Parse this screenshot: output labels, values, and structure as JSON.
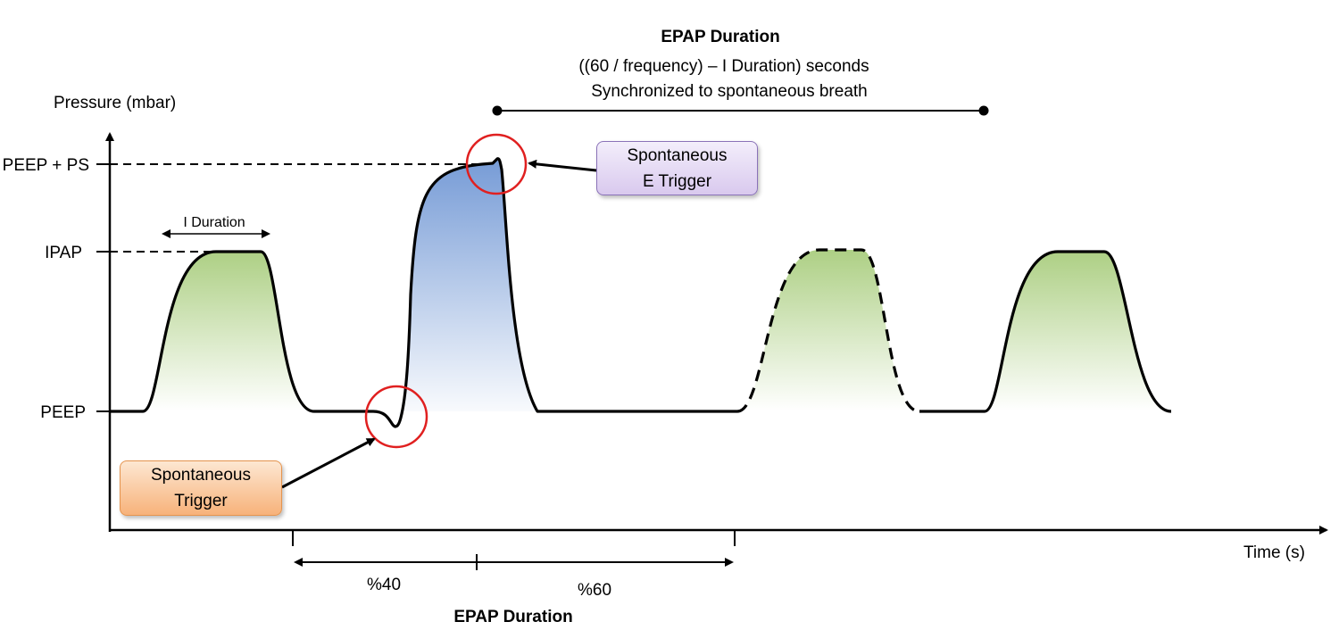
{
  "axes": {
    "y_label": "Pressure (mbar)",
    "x_label": "Time (s)",
    "y_ticks": [
      "PEEP + PS",
      "IPAP",
      "PEEP"
    ]
  },
  "top_annotation": {
    "title": "EPAP Duration",
    "formula": "((60 / frequency) – I Duration) seconds",
    "note": "Synchronized to spontaneous breath"
  },
  "i_duration_label": "I Duration",
  "callouts": {
    "spontaneous_e_trigger": "Spontaneous\nE Trigger",
    "spontaneous_trigger": "Spontaneous\nTrigger"
  },
  "bottom_annotation": {
    "split_first": "%40",
    "split_second": "%60",
    "title": "EPAP Duration"
  },
  "colors": {
    "ipap_fill": "#a9cd7e",
    "ps_fill": "#6f96d4",
    "trigger_circle": "#e02020",
    "e_trigger_box": "#d9c9ee",
    "trigger_box": "#f7b27a"
  }
}
